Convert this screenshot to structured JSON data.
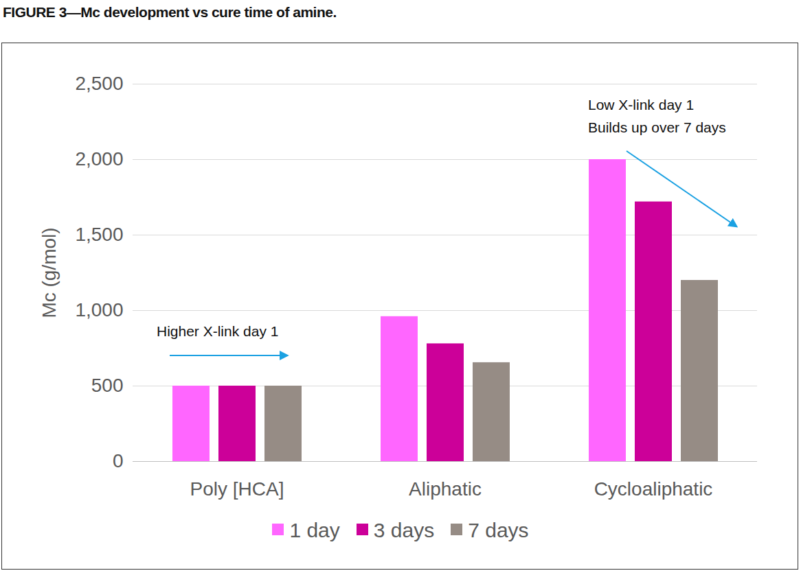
{
  "chart_data": {
    "type": "bar",
    "title": "FIGURE 3—Mc development vs cure time of amine.",
    "ylabel": "Mc (g/mol)",
    "categories": [
      "Poly [HCA]",
      "Aliphatic",
      "Cycloaliphatic"
    ],
    "series": [
      {
        "name": "1 day",
        "color": "#ff66ff",
        "values": [
          500,
          960,
          2000
        ]
      },
      {
        "name": "3 days",
        "color": "#cc0099",
        "values": [
          500,
          780,
          1720
        ]
      },
      {
        "name": "7 days",
        "color": "#968c85",
        "values": [
          500,
          655,
          1200
        ]
      }
    ],
    "ylim": [
      0,
      2500
    ],
    "yticks": [
      0,
      500,
      1000,
      1500,
      2000,
      2500
    ],
    "grid": true,
    "legend": "bottom",
    "annotations": [
      "Higher X-link day 1",
      "Low X-link day 1\nBuilds up over 7 days"
    ]
  }
}
